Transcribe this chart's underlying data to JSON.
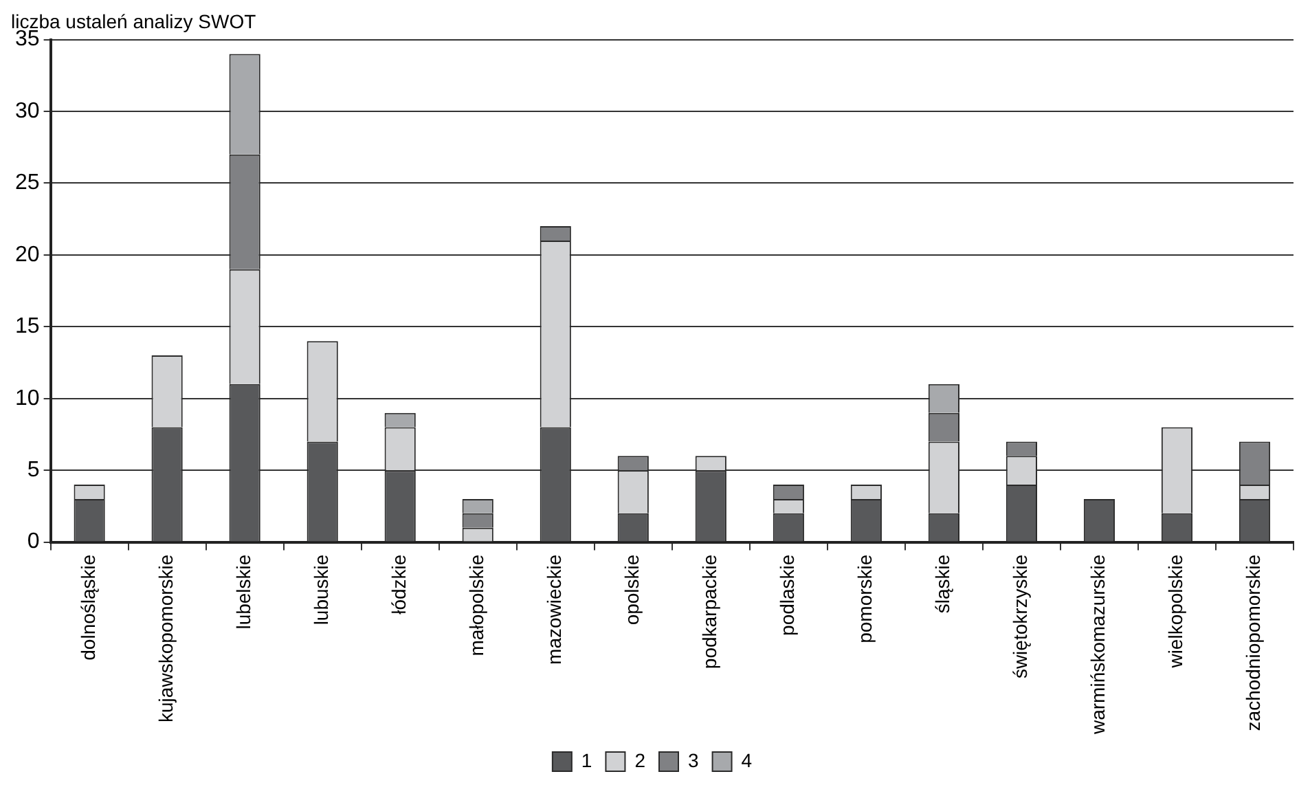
{
  "chart_data": {
    "type": "bar",
    "stacked": true,
    "ylabel": "liczba ustaleń analizy SWOT",
    "categories": [
      "dolnośląskie",
      "kujawskopomorskie",
      "lubelskie",
      "lubuskie",
      "łódzkie",
      "małopolskie",
      "mazowieckie",
      "opolskie",
      "podkarpackie",
      "podlaskie",
      "pomorskie",
      "śląskie",
      "świętokrzyskie",
      "warmińskomazurskie",
      "wielkopolskie",
      "zachodniopomorskie"
    ],
    "series": [
      {
        "name": "1",
        "color": "#58595b",
        "values": [
          3,
          8,
          11,
          7,
          5,
          0,
          8,
          2,
          5,
          2,
          3,
          2,
          4,
          3,
          2,
          3
        ]
      },
      {
        "name": "2",
        "color": "#d1d2d4",
        "values": [
          1,
          5,
          8,
          7,
          3,
          1,
          13,
          3,
          1,
          1,
          1,
          5,
          2,
          0,
          6,
          1
        ]
      },
      {
        "name": "3",
        "color": "#808184",
        "values": [
          0,
          0,
          8,
          0,
          0,
          1,
          1,
          1,
          0,
          1,
          0,
          2,
          1,
          0,
          0,
          3
        ]
      },
      {
        "name": "4",
        "color": "#a7a9ac",
        "values": [
          0,
          0,
          7,
          0,
          1,
          1,
          0,
          0,
          0,
          0,
          0,
          2,
          0,
          0,
          0,
          0
        ]
      }
    ],
    "ylim": [
      0,
      35
    ],
    "yticks": [
      0,
      5,
      10,
      15,
      20,
      25,
      30,
      35
    ],
    "grid": "y",
    "legend": "bottom"
  }
}
